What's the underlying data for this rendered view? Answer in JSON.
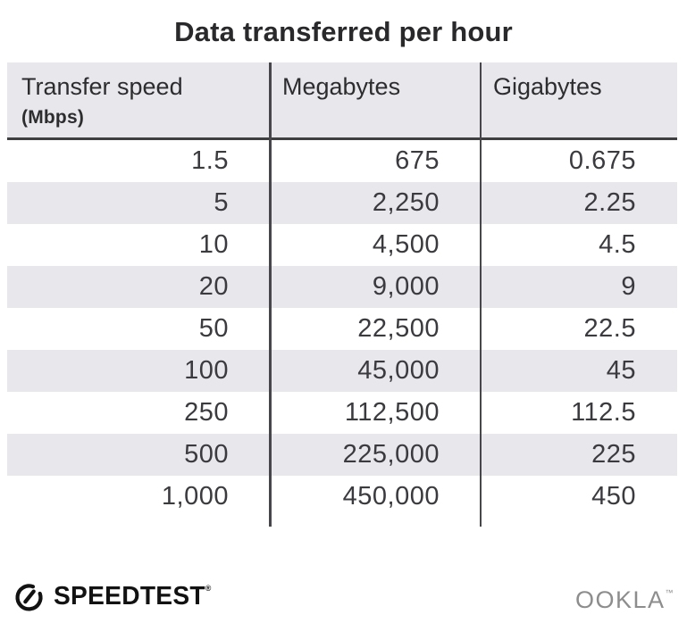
{
  "title": "Data transferred per hour",
  "chart_data": {
    "type": "table",
    "title": "Data transferred per hour",
    "columns": [
      {
        "label": "Transfer speed",
        "sublabel": "(Mbps)"
      },
      {
        "label": "Megabytes",
        "sublabel": ""
      },
      {
        "label": "Gigabytes",
        "sublabel": ""
      }
    ],
    "rows": [
      [
        "1.5",
        "675",
        "0.675"
      ],
      [
        "5",
        "2,250",
        "2.25"
      ],
      [
        "10",
        "4,500",
        "4.5"
      ],
      [
        "20",
        "9,000",
        "9"
      ],
      [
        "50",
        "22,500",
        "22.5"
      ],
      [
        "100",
        "45,000",
        "45"
      ],
      [
        "250",
        "112,500",
        "112.5"
      ],
      [
        "500",
        "225,000",
        "225"
      ],
      [
        "1,000",
        "450,000",
        "450"
      ]
    ],
    "layout": {
      "zebra_striping": true,
      "first_data_row_background": "white",
      "value_alignment": "right"
    }
  },
  "footer": {
    "speedtest_label": "SPEEDTEST",
    "speedtest_trademark": "®",
    "ookla_label": "OOKLA",
    "ookla_trademark": "™"
  },
  "colors": {
    "band_bg": "#e8e8ec",
    "rule": "#3f3f42",
    "divider": "#47474b",
    "title_text": "#29292c",
    "header_text": "#2d2d30",
    "cell_text": "#3b3b3f",
    "speedtest_black": "#121212",
    "ookla_gray": "#8d8d8d"
  }
}
